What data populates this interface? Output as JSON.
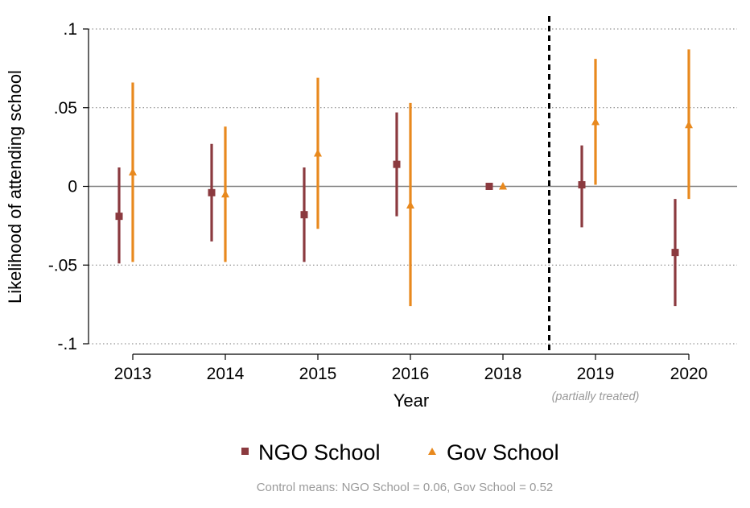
{
  "chart_data": {
    "type": "scatter",
    "subtype": "coefficient-plot-with-confidence-intervals",
    "categories": [
      "2013",
      "2014",
      "2015",
      "2016",
      "2018",
      "2019",
      "2020"
    ],
    "xlabel": "Year",
    "ylabel": "Likelihood of attending school",
    "ylim": [
      -0.1,
      0.1
    ],
    "yticks": [
      0.1,
      0.05,
      0,
      -0.05,
      -0.1
    ],
    "ytick_labels": [
      ".1",
      ".05",
      "0",
      "-.05",
      "-.1"
    ],
    "grid": "horizontal dotted",
    "reference_line_y": 0,
    "vertical_divider_between": [
      "2018",
      "2019"
    ],
    "annotations": [
      {
        "category": "2019",
        "text": "(partially treated)"
      }
    ],
    "series": [
      {
        "name": "NGO School",
        "marker": "square",
        "color": "#8b3a3f",
        "values": [
          -0.019,
          -0.004,
          -0.018,
          0.014,
          0.0,
          0.001,
          -0.042
        ],
        "ci_low": [
          -0.049,
          -0.035,
          -0.048,
          -0.019,
          0.0,
          -0.026,
          -0.076
        ],
        "ci_high": [
          0.012,
          0.027,
          0.012,
          0.047,
          0.0,
          0.026,
          -0.008
        ]
      },
      {
        "name": "Gov School",
        "marker": "triangle",
        "color": "#e8891e",
        "values": [
          0.009,
          -0.005,
          0.021,
          -0.012,
          0.0,
          0.041,
          0.039
        ],
        "ci_low": [
          -0.048,
          -0.048,
          -0.027,
          -0.076,
          0.0,
          0.001,
          -0.008
        ],
        "ci_high": [
          0.066,
          0.038,
          0.069,
          0.053,
          0.0,
          0.081,
          0.087
        ]
      }
    ],
    "legend": {
      "position": "bottom",
      "entries": [
        "NGO School",
        "Gov School"
      ]
    },
    "footnote": "Control means: NGO School = 0.06, Gov School = 0.52"
  }
}
